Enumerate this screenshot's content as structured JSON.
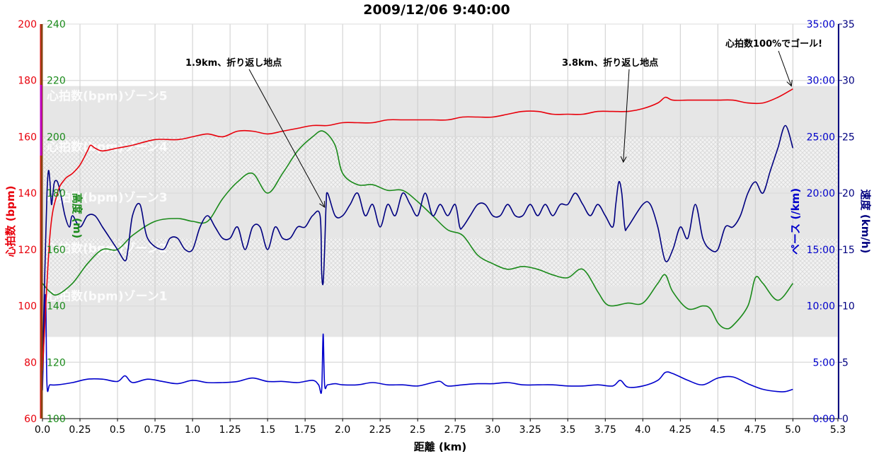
{
  "chart_data": {
    "type": "line",
    "title": "2009/12/06 9:40:00",
    "xlabel": "距離 (km)",
    "xlim": [
      0,
      5.3
    ],
    "x_ticks": [
      "0.0",
      "0.25",
      "0.5",
      "0.75",
      "1.0",
      "1.25",
      "1.5",
      "1.75",
      "2.0",
      "2.25",
      "2.5",
      "2.75",
      "3.0",
      "3.25",
      "3.5",
      "3.75",
      "4.0",
      "4.25",
      "4.5",
      "4.75",
      "5.0",
      "5.3"
    ],
    "axes": {
      "heart_rate": {
        "label": "心拍数 (bpm)",
        "ylim": [
          60,
          200
        ],
        "ticks": [
          "60",
          "80",
          "100",
          "120",
          "140",
          "160",
          "180",
          "200"
        ],
        "color": "#e8000b"
      },
      "altitude": {
        "label": "高度 (m)",
        "ylim": [
          100,
          240
        ],
        "ticks": [
          "100",
          "120",
          "140",
          "160",
          "180",
          "200",
          "220",
          "240"
        ],
        "color": "#1a8a1a"
      },
      "pace": {
        "label": "ペース (/km)",
        "ylim": [
          0,
          35
        ],
        "ticks": [
          "0:00",
          "5:00",
          "10:00",
          "15:00",
          "20:00",
          "25:00",
          "30:00",
          "35:00"
        ],
        "color": "#0000cc"
      },
      "speed": {
        "label": "速度 (km/h)",
        "ylim": [
          0,
          35
        ],
        "ticks": [
          "0",
          "5",
          "10",
          "15",
          "20",
          "25",
          "30",
          "35"
        ],
        "color": "#000080"
      }
    },
    "zones": [
      {
        "label": "心拍数(bpm)ゾーン5",
        "from": 160,
        "to": 178,
        "style": "solid",
        "color": "#e6e6e6"
      },
      {
        "label": "心拍数(bpm)ゾーン4",
        "from": 142,
        "to": 160,
        "style": "hatch",
        "color": "#ececec"
      },
      {
        "label": "心拍数(bpm)ゾーン3",
        "from": 124,
        "to": 142,
        "style": "solid",
        "color": "#e6e6e6"
      },
      {
        "label": "心拍数(bpm)ゾーン2",
        "from": 107,
        "to": 124,
        "style": "hatch",
        "color": "#ececec"
      },
      {
        "label": "心拍数(bpm)ゾーン1",
        "from": 89,
        "to": 107,
        "style": "solid",
        "color": "#e6e6e6"
      }
    ],
    "series": [
      {
        "axis": "heart_rate",
        "color": "#e8000b",
        "x": [
          0,
          0.05,
          0.1,
          0.15,
          0.2,
          0.25,
          0.3,
          0.32,
          0.35,
          0.4,
          0.5,
          0.6,
          0.75,
          0.9,
          1.0,
          1.1,
          1.2,
          1.3,
          1.4,
          1.5,
          1.6,
          1.7,
          1.8,
          1.9,
          2.0,
          2.1,
          2.2,
          2.3,
          2.4,
          2.5,
          2.6,
          2.7,
          2.8,
          2.9,
          3.0,
          3.1,
          3.2,
          3.3,
          3.4,
          3.5,
          3.6,
          3.7,
          3.8,
          3.9,
          4.0,
          4.1,
          4.15,
          4.2,
          4.3,
          4.4,
          4.5,
          4.6,
          4.7,
          4.8,
          4.9,
          5.0
        ],
        "values": [
          77,
          125,
          140,
          145,
          147,
          150,
          155,
          157,
          156,
          155,
          156,
          157,
          159,
          159,
          160,
          161,
          160,
          162,
          162,
          161,
          162,
          163,
          164,
          164,
          165,
          165,
          165,
          166,
          166,
          166,
          166,
          166,
          167,
          167,
          167,
          168,
          169,
          169,
          168,
          168,
          168,
          169,
          169,
          169,
          170,
          172,
          174,
          173,
          173,
          173,
          173,
          173,
          172,
          172,
          174,
          177
        ]
      },
      {
        "axis": "altitude",
        "color": "#1a8a1a",
        "x": [
          0,
          0.05,
          0.1,
          0.2,
          0.3,
          0.4,
          0.5,
          0.6,
          0.75,
          0.9,
          1.0,
          1.1,
          1.2,
          1.3,
          1.4,
          1.5,
          1.6,
          1.7,
          1.8,
          1.87,
          1.95,
          2.0,
          2.1,
          2.2,
          2.3,
          2.4,
          2.5,
          2.6,
          2.7,
          2.8,
          2.9,
          3.0,
          3.1,
          3.2,
          3.3,
          3.4,
          3.5,
          3.6,
          3.7,
          3.75,
          3.8,
          3.9,
          4.0,
          4.1,
          4.15,
          4.2,
          4.3,
          4.4,
          4.45,
          4.5,
          4.55,
          4.6,
          4.7,
          4.75,
          4.8,
          4.9,
          5.0
        ],
        "values": [
          148,
          145,
          144,
          148,
          155,
          160,
          160,
          165,
          170,
          171,
          170,
          170,
          178,
          184,
          187,
          180,
          187,
          195,
          200,
          202,
          197,
          187,
          183,
          183,
          181,
          181,
          177,
          172,
          167,
          165,
          158,
          155,
          153,
          154,
          153,
          151,
          150,
          153,
          145,
          141,
          140,
          141,
          141,
          148,
          151,
          145,
          139,
          140,
          139,
          134,
          132,
          133,
          140,
          150,
          148,
          142,
          148
        ]
      },
      {
        "axis": "speed",
        "color": "#000080",
        "x": [
          0,
          0.01,
          0.02,
          0.03,
          0.04,
          0.05,
          0.06,
          0.07,
          0.08,
          0.1,
          0.12,
          0.15,
          0.18,
          0.2,
          0.25,
          0.3,
          0.35,
          0.4,
          0.45,
          0.5,
          0.55,
          0.57,
          0.6,
          0.65,
          0.7,
          0.8,
          0.85,
          0.9,
          0.95,
          1.0,
          1.05,
          1.1,
          1.15,
          1.2,
          1.25,
          1.3,
          1.35,
          1.4,
          1.45,
          1.5,
          1.55,
          1.6,
          1.65,
          1.7,
          1.75,
          1.8,
          1.85,
          1.86,
          1.87,
          1.88,
          1.89,
          1.9,
          1.95,
          2.0,
          2.05,
          2.1,
          2.15,
          2.2,
          2.25,
          2.3,
          2.35,
          2.4,
          2.45,
          2.5,
          2.55,
          2.6,
          2.65,
          2.7,
          2.75,
          2.78,
          2.8,
          2.85,
          2.9,
          2.95,
          3.0,
          3.05,
          3.1,
          3.15,
          3.2,
          3.25,
          3.3,
          3.35,
          3.4,
          3.45,
          3.5,
          3.55,
          3.6,
          3.65,
          3.7,
          3.75,
          3.8,
          3.82,
          3.84,
          3.86,
          3.88,
          3.9,
          4.0,
          4.05,
          4.1,
          4.15,
          4.2,
          4.25,
          4.3,
          4.35,
          4.4,
          4.45,
          4.5,
          4.55,
          4.6,
          4.65,
          4.7,
          4.75,
          4.8,
          4.85,
          4.9,
          4.95,
          5.0
        ],
        "values": [
          4,
          10,
          15,
          20,
          22,
          21,
          19,
          20,
          21,
          21,
          20,
          18,
          17,
          18,
          17,
          18,
          18,
          17,
          16,
          15,
          14,
          15,
          18,
          19,
          16,
          15,
          16,
          16,
          15,
          15,
          17,
          18,
          17,
          16,
          16,
          17,
          15,
          17,
          17,
          15,
          17,
          16,
          16,
          17,
          17,
          18,
          18,
          13,
          12,
          15,
          19,
          20,
          18,
          18,
          19,
          20,
          18,
          19,
          17,
          19,
          18,
          20,
          19,
          18,
          20,
          18,
          19,
          18,
          19,
          17,
          17,
          18,
          19,
          19,
          18,
          18,
          19,
          18,
          18,
          19,
          18,
          19,
          18,
          19,
          19,
          20,
          19,
          18,
          19,
          18,
          17,
          19,
          21,
          20,
          17,
          17,
          19,
          19,
          17,
          14,
          15,
          17,
          16,
          19,
          16,
          15,
          15,
          17,
          17,
          18,
          20,
          21,
          20,
          22,
          24,
          26,
          24
        ]
      },
      {
        "axis": "pace",
        "color": "#0000cc",
        "x": [
          0,
          0.02,
          0.03,
          0.05,
          0.1,
          0.2,
          0.3,
          0.4,
          0.5,
          0.55,
          0.6,
          0.7,
          0.8,
          0.9,
          1.0,
          1.1,
          1.2,
          1.3,
          1.4,
          1.5,
          1.6,
          1.7,
          1.8,
          1.84,
          1.86,
          1.87,
          1.88,
          1.9,
          1.95,
          2.0,
          2.1,
          2.2,
          2.3,
          2.4,
          2.5,
          2.6,
          2.65,
          2.7,
          2.8,
          2.9,
          3.0,
          3.1,
          3.2,
          3.3,
          3.4,
          3.5,
          3.6,
          3.7,
          3.8,
          3.85,
          3.9,
          4.0,
          4.1,
          4.15,
          4.2,
          4.3,
          4.4,
          4.5,
          4.6,
          4.7,
          4.8,
          4.9,
          4.95,
          5.0
        ],
        "values": [
          2.5,
          11,
          3,
          3,
          3,
          3.2,
          3.5,
          3.5,
          3.3,
          3.8,
          3.2,
          3.5,
          3.3,
          3.1,
          3.4,
          3.2,
          3.2,
          3.3,
          3.6,
          3.3,
          3.3,
          3.2,
          3.4,
          3.0,
          2.5,
          7.5,
          3.0,
          3.0,
          3.1,
          3.0,
          3.0,
          3.2,
          3.0,
          3.0,
          2.9,
          3.2,
          3.3,
          2.9,
          3.0,
          3.1,
          3.1,
          3.2,
          3.0,
          3.0,
          3.0,
          2.9,
          2.9,
          3.0,
          2.9,
          3.4,
          2.8,
          2.9,
          3.4,
          4.1,
          4.0,
          3.4,
          3.0,
          3.6,
          3.7,
          3.1,
          2.6,
          2.4,
          2.4,
          2.6
        ]
      }
    ],
    "annotations": [
      {
        "text": "1.9km、折り返し地点",
        "x": 1.88,
        "axis": "speed",
        "y": 18.5
      },
      {
        "text": "3.8km、折り返し地点",
        "x": 3.87,
        "axis": "speed",
        "y": 22.5
      },
      {
        "text": "心拍数100%でゴール!",
        "x": 4.99,
        "axis": "heart_rate",
        "y": 177
      }
    ],
    "grid": true,
    "legend": "none"
  }
}
